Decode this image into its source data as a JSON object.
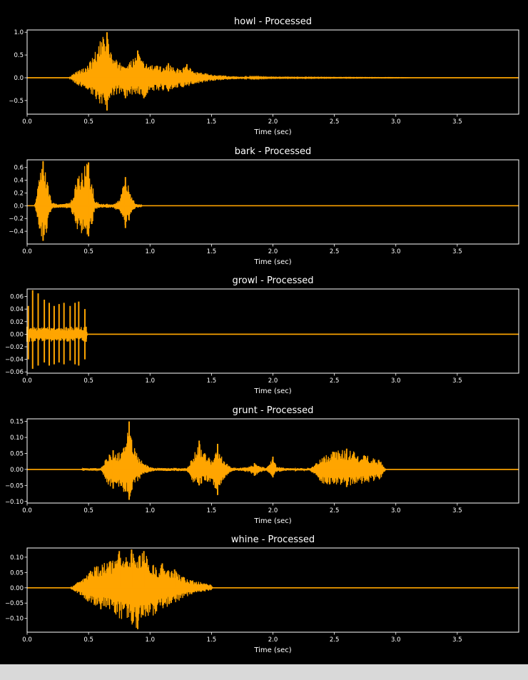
{
  "colors": {
    "background": "#000000",
    "axes": "#ffffff",
    "waveform": "#ffa500",
    "below_figure": "#d9d9d9"
  },
  "chart_data": [
    {
      "type": "line",
      "title": "howl - Processed",
      "xlabel": "Time (sec)",
      "xlim": [
        0,
        4.0
      ],
      "ylim": [
        -0.8,
        1.05
      ],
      "xticks": [
        "0.0",
        "0.5",
        "1.0",
        "1.5",
        "2.0",
        "2.5",
        "3.0",
        "3.5"
      ],
      "yticks": [
        "1.0",
        "0.5",
        "0.0",
        "−0.5"
      ],
      "ytick_values": [
        1.0,
        0.5,
        0.0,
        -0.5
      ],
      "envelope": {
        "t": [
          0.0,
          0.34,
          0.37,
          0.4,
          0.45,
          0.5,
          0.55,
          0.6,
          0.65,
          0.68,
          0.7,
          0.75,
          0.8,
          0.85,
          0.9,
          0.95,
          1.0,
          1.05,
          1.1,
          1.15,
          1.2,
          1.25,
          1.3,
          1.35,
          1.4,
          1.5,
          1.6,
          1.7,
          1.8,
          1.9,
          2.0,
          2.3,
          2.5,
          3.0,
          3.1,
          3.12,
          4.0
        ],
        "upper": [
          0.0,
          0.0,
          0.08,
          0.15,
          0.2,
          0.3,
          0.55,
          0.85,
          1.0,
          0.7,
          0.45,
          0.35,
          0.32,
          0.38,
          0.6,
          0.35,
          0.3,
          0.28,
          0.25,
          0.32,
          0.22,
          0.2,
          0.3,
          0.15,
          0.12,
          0.08,
          0.05,
          0.03,
          0.02,
          0.015,
          0.01,
          0.01,
          0.008,
          0.005,
          0.003,
          0.0,
          0.0
        ],
        "lower": [
          0.0,
          0.0,
          -0.08,
          -0.15,
          -0.22,
          -0.3,
          -0.5,
          -0.62,
          -0.72,
          -0.5,
          -0.4,
          -0.35,
          -0.45,
          -0.4,
          -0.35,
          -0.45,
          -0.32,
          -0.3,
          -0.28,
          -0.3,
          -0.25,
          -0.22,
          -0.2,
          -0.15,
          -0.12,
          -0.07,
          -0.05,
          -0.03,
          -0.02,
          -0.015,
          -0.01,
          -0.01,
          -0.008,
          -0.005,
          -0.003,
          0.0,
          0.0
        ]
      }
    },
    {
      "type": "line",
      "title": "bark - Processed",
      "xlabel": "Time (sec)",
      "xlim": [
        0,
        4.0
      ],
      "ylim": [
        -0.6,
        0.72
      ],
      "xticks": [
        "0.0",
        "0.5",
        "1.0",
        "1.5",
        "2.0",
        "2.5",
        "3.0",
        "3.5"
      ],
      "yticks": [
        "0.6",
        "0.4",
        "0.2",
        "0.0",
        "−0.2",
        "−0.4"
      ],
      "ytick_values": [
        0.6,
        0.4,
        0.2,
        0.0,
        -0.2,
        -0.4
      ],
      "envelope": {
        "t": [
          0.0,
          0.06,
          0.08,
          0.1,
          0.13,
          0.15,
          0.17,
          0.2,
          0.25,
          0.3,
          0.35,
          0.38,
          0.4,
          0.45,
          0.5,
          0.53,
          0.55,
          0.6,
          0.65,
          0.7,
          0.75,
          0.78,
          0.8,
          0.82,
          0.85,
          0.88,
          0.92,
          0.94,
          4.0
        ],
        "upper": [
          0.0,
          0.0,
          0.2,
          0.5,
          0.7,
          0.6,
          0.35,
          0.05,
          0.03,
          0.03,
          0.05,
          0.2,
          0.45,
          0.6,
          0.68,
          0.4,
          0.08,
          0.03,
          0.03,
          0.03,
          0.1,
          0.3,
          0.45,
          0.35,
          0.15,
          0.05,
          0.02,
          0.0,
          0.0
        ],
        "lower": [
          0.0,
          0.0,
          -0.2,
          -0.45,
          -0.55,
          -0.5,
          -0.3,
          -0.05,
          -0.03,
          -0.03,
          -0.05,
          -0.2,
          -0.35,
          -0.45,
          -0.48,
          -0.3,
          -0.06,
          -0.03,
          -0.03,
          -0.03,
          -0.1,
          -0.25,
          -0.35,
          -0.3,
          -0.12,
          -0.04,
          -0.02,
          0.0,
          0.0
        ]
      }
    },
    {
      "type": "line",
      "title": "growl - Processed",
      "xlabel": "Time (sec)",
      "xlim": [
        0,
        4.0
      ],
      "ylim": [
        -0.062,
        0.072
      ],
      "xticks": [
        "0.0",
        "0.5",
        "1.0",
        "1.5",
        "2.0",
        "2.5",
        "3.0",
        "3.5"
      ],
      "yticks": [
        "0.06",
        "0.04",
        "0.02",
        "0.00",
        "−0.02",
        "−0.04",
        "−0.06"
      ],
      "ytick_values": [
        0.06,
        0.04,
        0.02,
        0.0,
        -0.02,
        -0.04,
        -0.06
      ],
      "envelope": {
        "t": [
          0.0,
          0.48,
          0.49,
          4.0
        ],
        "upper": [
          0.012,
          0.012,
          0.0,
          0.0
        ],
        "lower": [
          -0.012,
          -0.012,
          0.0,
          0.0
        ]
      },
      "spikes": [
        {
          "t": 0.01,
          "hi": 0.045,
          "lo": -0.04
        },
        {
          "t": 0.045,
          "hi": 0.07,
          "lo": -0.055
        },
        {
          "t": 0.09,
          "hi": 0.065,
          "lo": -0.05
        },
        {
          "t": 0.14,
          "hi": 0.055,
          "lo": -0.045
        },
        {
          "t": 0.18,
          "hi": 0.05,
          "lo": -0.05
        },
        {
          "t": 0.22,
          "hi": 0.045,
          "lo": -0.048
        },
        {
          "t": 0.26,
          "hi": 0.048,
          "lo": -0.045
        },
        {
          "t": 0.3,
          "hi": 0.05,
          "lo": -0.048
        },
        {
          "t": 0.35,
          "hi": 0.045,
          "lo": -0.042
        },
        {
          "t": 0.39,
          "hi": 0.05,
          "lo": -0.048
        },
        {
          "t": 0.42,
          "hi": 0.052,
          "lo": -0.05
        },
        {
          "t": 0.47,
          "hi": 0.04,
          "lo": -0.04
        }
      ]
    },
    {
      "type": "line",
      "title": "grunt - Processed",
      "xlabel": "Time (sec)",
      "xlim": [
        0,
        4.0
      ],
      "ylim": [
        -0.105,
        0.158
      ],
      "xticks": [
        "0.0",
        "0.5",
        "1.0",
        "1.5",
        "2.0",
        "2.5",
        "3.0",
        "3.5"
      ],
      "yticks": [
        "0.15",
        "0.10",
        "0.05",
        "0.00",
        "−0.05",
        "−0.10"
      ],
      "ytick_values": [
        0.15,
        0.1,
        0.05,
        0.0,
        -0.05,
        -0.1
      ],
      "envelope": {
        "t": [
          0.0,
          0.44,
          0.46,
          0.6,
          0.62,
          0.65,
          0.7,
          0.75,
          0.8,
          0.83,
          0.85,
          0.9,
          0.95,
          1.0,
          1.05,
          1.3,
          1.35,
          1.4,
          1.45,
          1.5,
          1.55,
          1.6,
          1.65,
          1.7,
          1.8,
          1.85,
          1.9,
          1.95,
          2.0,
          2.01,
          2.03,
          2.1,
          2.3,
          2.35,
          2.4,
          2.5,
          2.6,
          2.7,
          2.8,
          2.88,
          2.9,
          2.92,
          4.0
        ],
        "upper": [
          0.0,
          0.0,
          0.004,
          0.004,
          0.02,
          0.04,
          0.06,
          0.055,
          0.08,
          0.15,
          0.1,
          0.05,
          0.02,
          0.008,
          0.005,
          0.005,
          0.04,
          0.09,
          0.05,
          0.03,
          0.08,
          0.03,
          0.01,
          0.004,
          0.008,
          0.02,
          0.01,
          0.005,
          0.04,
          0.03,
          0.01,
          0.004,
          0.004,
          0.02,
          0.04,
          0.06,
          0.065,
          0.05,
          0.04,
          0.03,
          0.01,
          0.0,
          0.0
        ],
        "lower": [
          0.0,
          0.0,
          -0.004,
          -0.004,
          -0.02,
          -0.045,
          -0.06,
          -0.06,
          -0.08,
          -0.095,
          -0.07,
          -0.04,
          -0.015,
          -0.008,
          -0.005,
          -0.005,
          -0.04,
          -0.05,
          -0.04,
          -0.04,
          -0.08,
          -0.03,
          -0.01,
          -0.004,
          -0.008,
          -0.02,
          -0.01,
          -0.005,
          -0.025,
          -0.02,
          -0.01,
          -0.004,
          -0.004,
          -0.02,
          -0.045,
          -0.05,
          -0.055,
          -0.05,
          -0.04,
          -0.03,
          -0.01,
          0.0,
          0.0
        ]
      }
    },
    {
      "type": "line",
      "title": "whine - Processed",
      "xlabel": "Time (sec)",
      "xlim": [
        0,
        4.0
      ],
      "ylim": [
        -0.145,
        0.13
      ],
      "xticks": [
        "0.0",
        "0.5",
        "1.0",
        "1.5",
        "2.0",
        "2.5",
        "3.0",
        "3.5"
      ],
      "yticks": [
        "0.10",
        "0.05",
        "0.00",
        "−0.05",
        "−0.10"
      ],
      "ytick_values": [
        0.1,
        0.05,
        0.0,
        -0.05,
        -0.1
      ],
      "envelope": {
        "t": [
          0.0,
          0.35,
          0.4,
          0.45,
          0.5,
          0.55,
          0.6,
          0.65,
          0.7,
          0.75,
          0.8,
          0.85,
          0.9,
          0.95,
          1.0,
          1.05,
          1.1,
          1.15,
          1.2,
          1.25,
          1.3,
          1.35,
          1.4,
          1.45,
          1.5,
          1.51,
          4.0
        ],
        "upper": [
          0.0,
          0.0,
          0.015,
          0.03,
          0.05,
          0.07,
          0.085,
          0.09,
          0.1,
          0.12,
          0.11,
          0.125,
          0.1,
          0.12,
          0.09,
          0.07,
          0.08,
          0.06,
          0.06,
          0.04,
          0.03,
          0.025,
          0.02,
          0.015,
          0.01,
          0.0,
          0.0
        ],
        "lower": [
          0.0,
          0.0,
          -0.015,
          -0.03,
          -0.05,
          -0.06,
          -0.07,
          -0.065,
          -0.08,
          -0.1,
          -0.11,
          -0.125,
          -0.135,
          -0.11,
          -0.1,
          -0.09,
          -0.07,
          -0.06,
          -0.05,
          -0.04,
          -0.03,
          -0.02,
          -0.015,
          -0.012,
          -0.008,
          0.0,
          0.0
        ]
      }
    }
  ]
}
